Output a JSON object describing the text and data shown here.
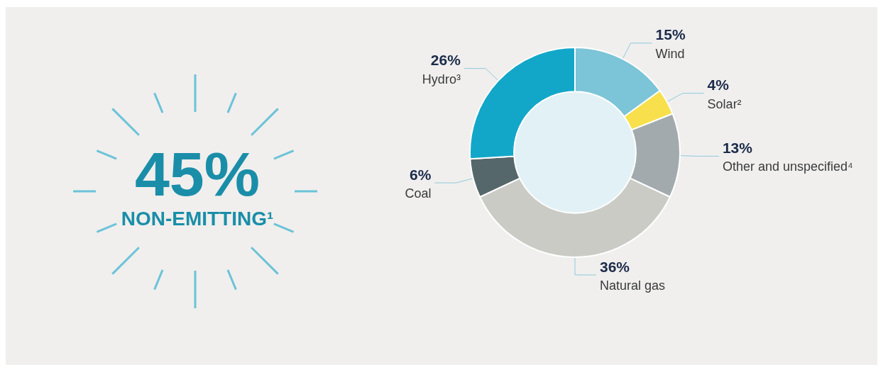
{
  "chart_data": {
    "type": "donut",
    "categories": [
      "Wind",
      "Solar²",
      "Other and unspecified⁴",
      "Natural gas",
      "Coal",
      "Hydro³"
    ],
    "values": [
      15,
      4,
      13,
      36,
      6,
      26
    ],
    "value_labels": [
      "15%",
      "4%",
      "13%",
      "36%",
      "6%",
      "26%"
    ],
    "colors": [
      "#7cc4d8",
      "#f7e04b",
      "#a2aaad",
      "#cbcbc6",
      "#56676b",
      "#12a7c9"
    ],
    "annotations": [
      "45%",
      "NON-EMITTING¹"
    ],
    "legend": false
  }
}
